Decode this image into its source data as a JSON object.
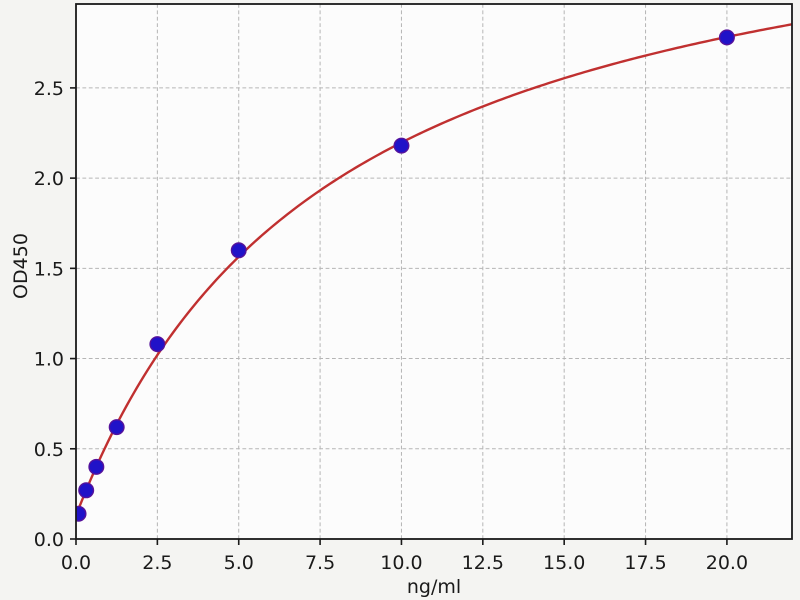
{
  "figure": {
    "background_color": "#f4f4f2",
    "plot_background_color": "#fcfcfc",
    "border_color": "#1a1a1a",
    "tick_color": "#1a1a1a",
    "label_color": "#1a1a1a"
  },
  "chart_data": {
    "type": "scatter",
    "title": "",
    "xlabel": "ng/ml",
    "ylabel": "OD450",
    "xlim": [
      0,
      22
    ],
    "ylim": [
      0,
      2.965
    ],
    "grid": {
      "visible": true,
      "style": "dashed",
      "color": "#b5b5b5"
    },
    "x_ticks": [
      0,
      2.5,
      5,
      7.5,
      10,
      12.5,
      15,
      17.5,
      20
    ],
    "x_tick_labels": [
      "0.0",
      "2.5",
      "5.0",
      "7.5",
      "10.0",
      "12.5",
      "15.0",
      "17.5",
      "20.0"
    ],
    "y_ticks": [
      0,
      0.5,
      1,
      1.5,
      2,
      2.5
    ],
    "y_tick_labels": [
      "0.0",
      "0.5",
      "1.0",
      "1.5",
      "2.0",
      "2.5"
    ],
    "series": [
      {
        "name": "standard-points",
        "type": "scatter",
        "marker": "circle",
        "marker_color": "#2012c8",
        "marker_edge_color": "#55129b",
        "points": [
          [
            0.078,
            0.14
          ],
          [
            0.313,
            0.27
          ],
          [
            0.625,
            0.4
          ],
          [
            1.25,
            0.62
          ],
          [
            2.5,
            1.08
          ],
          [
            5.0,
            1.6
          ],
          [
            10.0,
            2.18
          ],
          [
            20.0,
            2.78
          ]
        ]
      },
      {
        "name": "fit-curve",
        "type": "line",
        "color": "#c03030",
        "fit_model": "saturation: y = y0 + vmax*x/(k+x)",
        "fit_params": {
          "y0": 0.13,
          "vmax": 3.7,
          "k": 7.9
        },
        "x_range": [
          0,
          22
        ]
      }
    ]
  }
}
